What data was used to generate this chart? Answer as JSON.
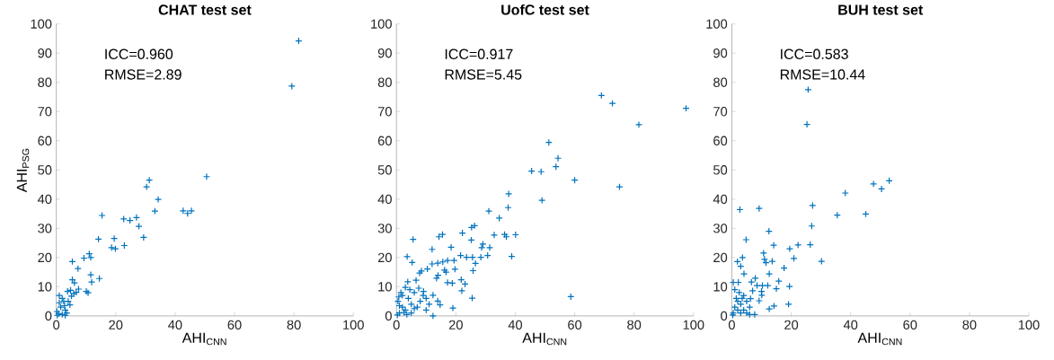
{
  "chart_data": [
    {
      "type": "scatter",
      "title": "CHAT test set",
      "xlabel": "AHI$_{CNN}$",
      "ylabel": "AHI$_{PSG}$",
      "marker": "cross",
      "grid": false,
      "annotations": [
        "ICC=0.960",
        "RMSE=2.89"
      ],
      "xlim": [
        0,
        100
      ],
      "ylim": [
        0,
        100
      ],
      "xticks": [
        0,
        20,
        40,
        60,
        80,
        100
      ],
      "yticks": [
        0,
        10,
        20,
        30,
        40,
        50,
        60,
        70,
        80,
        90,
        100
      ],
      "series": [
        {
          "color": "#0072bd",
          "x": [
            81.6,
            79.3,
            50.6,
            31.3,
            30.4,
            34.3,
            33.2,
            42.7,
            44.2,
            45.5,
            15.4,
            22.7,
            24.8,
            27.0,
            27.8,
            29.4,
            14.2,
            19.5,
            18.6,
            19.9,
            22.9,
            11.1,
            11.6,
            9.3,
            5.4,
            7.3,
            11.6,
            11.9,
            14.5,
            5.4,
            6.1,
            7.5,
            10.1,
            10.7,
            6.7,
            4.8,
            3.8,
            5.1,
            5.9,
            4.6,
            2,
            1.5,
            3,
            2.5,
            1,
            0.3,
            3.5,
            2,
            4,
            1,
            0.2,
            2.8,
            0.8,
            3
          ],
          "values": [
            94.2,
            78.7,
            47.7,
            46.5,
            44.2,
            39.9,
            35.9,
            36.0,
            35.1,
            36.0,
            34.4,
            33.2,
            32.7,
            33.7,
            30.7,
            26.9,
            26.3,
            26.5,
            23.4,
            23.0,
            24.1,
            21.3,
            20.0,
            19.8,
            18.6,
            16.2,
            14.1,
            11.6,
            12.8,
            12.4,
            11.3,
            9.2,
            8.4,
            7.9,
            8.1,
            8.8,
            8.4,
            6.8,
            7.6,
            3.8,
            0.5,
            3,
            2,
            5,
            4.5,
            0.2,
            1,
            6,
            5,
            7,
            1.5,
            3.5,
            0.8,
            0.2
          ]
        }
      ]
    },
    {
      "type": "scatter",
      "title": "UofC test set",
      "xlabel": "AHI$_{CNN}$",
      "marker": "cross",
      "grid": false,
      "annotations": [
        "ICC=0.917",
        "RMSE=5.45"
      ],
      "xlim": [
        0,
        100
      ],
      "ylim": [
        0,
        100
      ],
      "xticks": [
        0,
        20,
        40,
        60,
        80,
        100
      ],
      "yticks": [
        0,
        10,
        20,
        30,
        40,
        50,
        60,
        70,
        80,
        90,
        100
      ],
      "series": [
        {
          "color": "#0072bd",
          "x": [
            97.5,
            69.0,
            72.7,
            81.6,
            51.3,
            54.4,
            53.7,
            45.5,
            48.7,
            60.0,
            75.1,
            49.0,
            37.8,
            37.6,
            31.1,
            34.6,
            26.3,
            25.3,
            22.2,
            15.5,
            14.3,
            5.6,
            32.9,
            36.4,
            37.0,
            40.1,
            25.2,
            29.1,
            28.7,
            31.4,
            18.4,
            12.0,
            21.6,
            23.6,
            25.6,
            28.4,
            30.7,
            38.8,
            3.6,
            5.3,
            26.6,
            17.2,
            19.4,
            12.0,
            13.9,
            15.6,
            16.2,
            16.7,
            19.7,
            25.8,
            10.4,
            8.4,
            7.8,
            14.0,
            13.5,
            17.2,
            18.8,
            21.8,
            23.1,
            22.0,
            25.5,
            58.7,
            13.9,
            14.7,
            19.0,
            12.3,
            12.3,
            9.1,
            3.8,
            6.6,
            3.0,
            1,
            2,
            0.5,
            3,
            4,
            5,
            6,
            7,
            8,
            9,
            10,
            2,
            1,
            3.5,
            5,
            0.3,
            6,
            4.5,
            11,
            7.5,
            1.5,
            2.5,
            10,
            0.8
          ],
          "values": [
            71.1,
            75.5,
            72.8,
            65.5,
            59.4,
            54.0,
            51.1,
            49.6,
            49.4,
            46.5,
            44.2,
            39.6,
            41.8,
            37.1,
            35.9,
            33.5,
            30.9,
            30.3,
            28.4,
            27.9,
            27.1,
            26.2,
            27.7,
            27.9,
            27.1,
            27.8,
            26.0,
            24.6,
            23.4,
            23.4,
            23.5,
            22.8,
            20.7,
            20.1,
            20.1,
            20.1,
            20.7,
            20.4,
            20.3,
            18.3,
            18.0,
            19.0,
            19.0,
            17.8,
            18.1,
            18.5,
            15.7,
            15.0,
            16.0,
            15.5,
            16.1,
            15.4,
            14.7,
            13.9,
            12.9,
            11.4,
            11.2,
            12.4,
            10.9,
            8.6,
            6.1,
            6.6,
            5.1,
            3.8,
            2.7,
            0,
            7.1,
            8.4,
            11.7,
            12.2,
            9.8,
            1,
            3,
            5,
            2,
            6,
            4,
            8,
            3,
            5,
            7,
            6,
            7,
            3.5,
            0.5,
            1,
            0.3,
            2.5,
            9,
            4,
            9.5,
            8,
            1.2,
            2,
            6.5
          ]
        }
      ]
    },
    {
      "type": "scatter",
      "title": "BUH test set",
      "xlabel": "AHI$_{CNN}$",
      "marker": "cross",
      "grid": false,
      "annotations": [
        "ICC=0.583",
        "RMSE=10.44"
      ],
      "xlim": [
        0,
        100
      ],
      "ylim": [
        0,
        100
      ],
      "xticks": [
        0,
        20,
        40,
        60,
        80,
        100
      ],
      "yticks": [
        0,
        10,
        20,
        30,
        40,
        50,
        60,
        70,
        80,
        90,
        100
      ],
      "series": [
        {
          "color": "#0072bd",
          "x": [
            25.7,
            25.3,
            53.0,
            47.7,
            50.4,
            38.2,
            27.2,
            9.2,
            2.7,
            35.5,
            45.1,
            26.9,
            4.8,
            12.5,
            14.1,
            22.3,
            26.4,
            19.5,
            10.7,
            3.6,
            1.9,
            3.0,
            11.0,
            11.5,
            13.6,
            20.9,
            30.2,
            17.6,
            4.1,
            12.6,
            15.8,
            2.2,
            7.9,
            6.6,
            8.5,
            10.3,
            12.1,
            19.4,
            15.0,
            10.0,
            10.1,
            7.0,
            6.3,
            9.2,
            19.1,
            14.2,
            12.6,
            7.7,
            0.5,
            1,
            2,
            3,
            1.5,
            4,
            2.5,
            5,
            3,
            6,
            0.3,
            2,
            4,
            1,
            5,
            3.5,
            6,
            0.5
          ],
          "values": [
            77.5,
            65.6,
            46.3,
            45.2,
            43.5,
            42.1,
            37.8,
            36.8,
            36.4,
            34.5,
            34.9,
            30.8,
            26.1,
            29.0,
            24.2,
            24.3,
            24.4,
            23.0,
            21.5,
            20.0,
            18.6,
            17.0,
            19.4,
            18.2,
            18.7,
            19.7,
            18.7,
            16.4,
            14.4,
            14.4,
            11.9,
            11.5,
            12.9,
            11.6,
            10.4,
            10.4,
            10.4,
            10.1,
            9.3,
            8.4,
            7.1,
            8.6,
            5.9,
            5.2,
            4.0,
            3.4,
            2.4,
            0.5,
            1,
            3,
            2,
            4,
            6,
            7,
            8,
            5,
            1,
            3,
            0.3,
            5,
            2,
            9,
            1,
            6,
            0.5,
            11.5
          ]
        }
      ]
    }
  ]
}
